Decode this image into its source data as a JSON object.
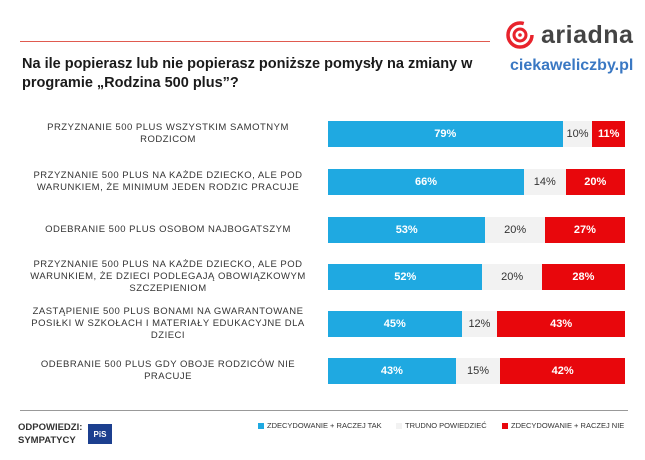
{
  "header": {
    "title": "Na ile popierasz lub nie popierasz poniższe pomysły na zmiany w programie „Rodzina 500 plus”?",
    "logo_text": "ariadna",
    "site": "ciekaweliczby.pl"
  },
  "colors": {
    "blue": "#1fa9e1",
    "grey": "#f2f2f2",
    "red": "#e8070c",
    "accent_line": "#e05a4f",
    "site_blue": "#3a78c3",
    "pis_blue": "#1c3f8f"
  },
  "chart_data": {
    "type": "bar",
    "orientation": "horizontal",
    "stacked": true,
    "title": "Na ile popierasz lub nie popierasz poniższe pomysły na zmiany w programie „Rodzina 500 plus”?",
    "categories": [
      "PRZYZNANIE 500 PLUS WSZYSTKIM SAMOTNYM RODZICOM",
      "PRZYZNANIE 500 PLUS NA KAŻDE DZIECKO, ALE POD WARUNKIEM, ŻE MINIMUM JEDEN RODZIC PRACUJE",
      "ODEBRANIE 500 PLUS OSOBOM NAJBOGATSZYM",
      "PRZYZNANIE 500 PLUS NA KAŻDE DZIECKO, ALE POD WARUNKIEM, ŻE DZIECI PODLEGAJĄ OBOWIĄZKOWYM SZCZEPIENIOM",
      "ZASTĄPIENIE 500 PLUS BONAMI NA GWARANTOWANE POSIŁKI W SZKOŁACH I MATERIAŁY EDUKACYJNE DLA DZIECI",
      "ODEBRANIE 500 PLUS  GDY OBOJE RODZICÓW NIE PRACUJE"
    ],
    "series": [
      {
        "name": "ZDECYDOWANIE + RACZEJ TAK",
        "values": [
          79,
          66,
          53,
          52,
          45,
          43
        ]
      },
      {
        "name": "TRUDNO POWIEDZIEĆ",
        "values": [
          10,
          14,
          20,
          20,
          12,
          15
        ]
      },
      {
        "name": "ZDECYDOWANIE + RACZEJ NIE",
        "values": [
          11,
          20,
          27,
          28,
          43,
          42
        ]
      }
    ],
    "value_suffix": "%",
    "xlim": [
      0,
      100
    ],
    "legend_position": "bottom"
  },
  "footer": {
    "respondents_line1": "ODPOWIEDZI:",
    "respondents_line2": "SYMPATYCY",
    "party_badge": "PiS"
  }
}
